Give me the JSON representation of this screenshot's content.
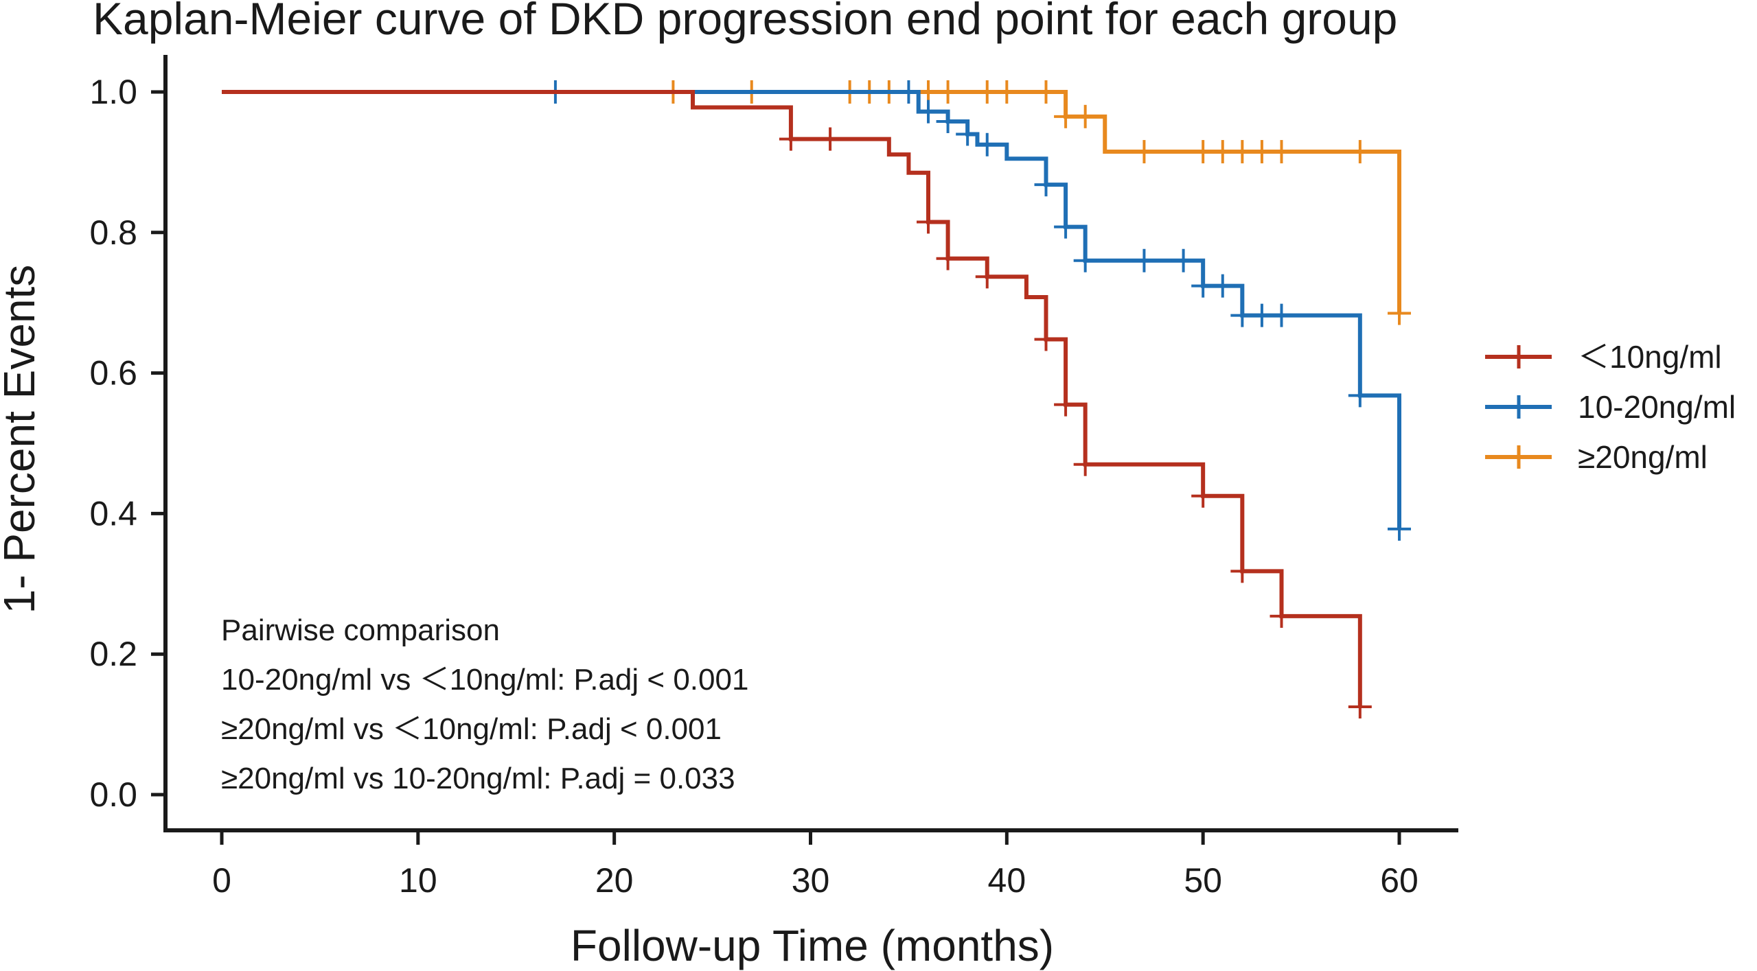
{
  "chart_data": {
    "type": "line",
    "subtype": "kaplan-meier step",
    "title": "Kaplan-Meier curve of  DKD progression end point for each group",
    "xlabel": "Follow-up Time (months)",
    "ylabel": "1- Percent Events",
    "xlim": [
      0,
      60
    ],
    "ylim": [
      0,
      1
    ],
    "xticks": [
      0,
      10,
      20,
      30,
      40,
      50,
      60
    ],
    "yticks": [
      0.0,
      0.2,
      0.4,
      0.6,
      0.8,
      1.0
    ],
    "ytick_labels": [
      "0.0",
      "0.2",
      "0.4",
      "0.6",
      "0.8",
      "1.0"
    ],
    "legend_position": "right",
    "series": [
      {
        "name": "＜10ng/ml",
        "color": "#b5301e",
        "steps": [
          [
            0,
            1.0
          ],
          [
            24,
            0.978
          ],
          [
            29,
            0.933
          ],
          [
            34,
            0.911
          ],
          [
            35,
            0.885
          ],
          [
            36,
            0.815
          ],
          [
            37,
            0.763
          ],
          [
            39,
            0.737
          ],
          [
            41,
            0.708
          ],
          [
            42,
            0.648
          ],
          [
            43,
            0.555
          ],
          [
            44,
            0.47
          ],
          [
            50,
            0.425
          ],
          [
            52,
            0.318
          ],
          [
            54,
            0.254
          ],
          [
            58,
            0.125
          ]
        ],
        "end_x": 58,
        "censored": [
          [
            29,
            0.933
          ],
          [
            31,
            0.933
          ],
          [
            36,
            0.815
          ],
          [
            37,
            0.763
          ],
          [
            39,
            0.737
          ],
          [
            42,
            0.648
          ],
          [
            43,
            0.555
          ],
          [
            44,
            0.47
          ],
          [
            50,
            0.425
          ],
          [
            52,
            0.318
          ],
          [
            54,
            0.254
          ],
          [
            58,
            0.125
          ]
        ]
      },
      {
        "name": "10-20ng/ml",
        "color": "#1f6fb5",
        "steps": [
          [
            0,
            1.0
          ],
          [
            35.5,
            0.972
          ],
          [
            37,
            0.958
          ],
          [
            38,
            0.94
          ],
          [
            38.5,
            0.925
          ],
          [
            40,
            0.905
          ],
          [
            42,
            0.868
          ],
          [
            43,
            0.808
          ],
          [
            44,
            0.76
          ],
          [
            50,
            0.724
          ],
          [
            52,
            0.682
          ],
          [
            58,
            0.568
          ],
          [
            60,
            0.378
          ]
        ],
        "end_x": 60,
        "censored": [
          [
            17,
            1.0
          ],
          [
            35,
            1.0
          ],
          [
            36,
            0.972
          ],
          [
            37,
            0.958
          ],
          [
            38,
            0.94
          ],
          [
            39,
            0.925
          ],
          [
            42,
            0.868
          ],
          [
            43,
            0.808
          ],
          [
            44,
            0.76
          ],
          [
            47,
            0.76
          ],
          [
            49,
            0.76
          ],
          [
            50,
            0.724
          ],
          [
            51,
            0.724
          ],
          [
            52,
            0.682
          ],
          [
            53,
            0.682
          ],
          [
            54,
            0.682
          ],
          [
            58,
            0.568
          ],
          [
            60,
            0.378
          ]
        ]
      },
      {
        "name": "≥20ng/ml",
        "color": "#e8891e",
        "steps": [
          [
            0,
            1.0
          ],
          [
            43,
            0.965
          ],
          [
            45,
            0.915
          ],
          [
            60,
            0.685
          ]
        ],
        "end_x": 60,
        "censored": [
          [
            23,
            1.0
          ],
          [
            27,
            1.0
          ],
          [
            32,
            1.0
          ],
          [
            33,
            1.0
          ],
          [
            34,
            1.0
          ],
          [
            36,
            1.0
          ],
          [
            37,
            1.0
          ],
          [
            39,
            1.0
          ],
          [
            40,
            1.0
          ],
          [
            42,
            1.0
          ],
          [
            43,
            0.965
          ],
          [
            44,
            0.965
          ],
          [
            47,
            0.915
          ],
          [
            50,
            0.915
          ],
          [
            51,
            0.915
          ],
          [
            52,
            0.915
          ],
          [
            53,
            0.915
          ],
          [
            54,
            0.915
          ],
          [
            58,
            0.915
          ],
          [
            60,
            0.685
          ]
        ]
      }
    ],
    "annotations": [
      "Pairwise comparison",
      "10-20ng/ml vs ＜10ng/ml: P.adj < 0.001",
      "≥20ng/ml vs ＜10ng/ml: P.adj < 0.001",
      "≥20ng/ml vs 10-20ng/ml: P.adj = 0.033"
    ]
  }
}
